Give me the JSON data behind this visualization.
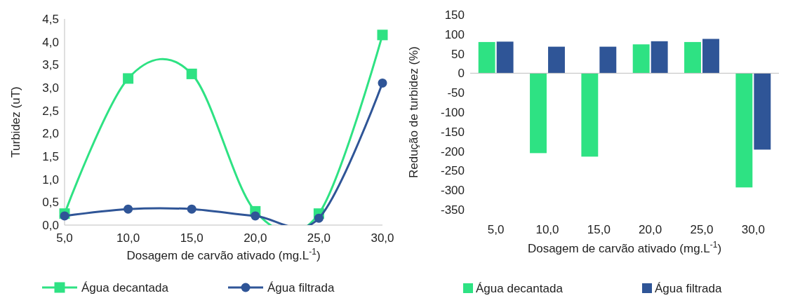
{
  "chart_data": [
    {
      "type": "line",
      "xlabel": "Dosagem de carvão ativado (mg.L$^{-1}$)",
      "ylabel": "Turbidez (uT)",
      "x": [
        5,
        10,
        15,
        20,
        25,
        30
      ],
      "xlim": [
        5,
        30
      ],
      "xticks": [
        {
          "value": 5,
          "label": "5,0"
        },
        {
          "value": 10,
          "label": "10,0"
        },
        {
          "value": 15,
          "label": "15,0"
        },
        {
          "value": 20,
          "label": "20,0"
        },
        {
          "value": 25,
          "label": "25,0"
        },
        {
          "value": 30,
          "label": "30,0"
        }
      ],
      "ylim": [
        0,
        4.5
      ],
      "yticks": [
        {
          "value": 0,
          "label": "0,0"
        },
        {
          "value": 0.5,
          "label": "0,5"
        },
        {
          "value": 1,
          "label": "1,0"
        },
        {
          "value": 1.5,
          "label": "1,5"
        },
        {
          "value": 2,
          "label": "2,0"
        },
        {
          "value": 2.5,
          "label": "2,5"
        },
        {
          "value": 3,
          "label": "3,0"
        },
        {
          "value": 3.5,
          "label": "3,5"
        },
        {
          "value": 4,
          "label": "4,0"
        },
        {
          "value": 4.5,
          "label": "4,5"
        }
      ],
      "grid": false,
      "legend": "bottom",
      "line_style": "solid",
      "series": [
        {
          "name": "Água decantada",
          "color": "#2ee283",
          "marker": "square",
          "values": [
            0.25,
            3.2,
            3.3,
            0.3,
            0.25,
            4.15
          ]
        },
        {
          "name": "Água filtrada",
          "color": "#2f5597",
          "marker": "circle",
          "values": [
            0.2,
            0.35,
            0.35,
            0.2,
            0.15,
            3.1
          ]
        }
      ]
    },
    {
      "type": "bar",
      "xlabel": "Dosagem de carvão ativado (mg.L$^{-1}$)",
      "ylabel": "Redução de turbidez (%)",
      "categories": [
        "5,0",
        "10,0",
        "15,0",
        "20,0",
        "25,0",
        "30,0"
      ],
      "ylim": [
        -350,
        150
      ],
      "yticks": [
        -350,
        -300,
        -250,
        -200,
        -150,
        -100,
        -50,
        0,
        50,
        100,
        150
      ],
      "legend": "bottom",
      "series": [
        {
          "name": "Água decantada",
          "color": "#2ee283",
          "values": [
            80,
            -205,
            -214,
            74,
            80,
            -293
          ]
        },
        {
          "name": "Água filtrada",
          "color": "#2f5597",
          "values": [
            81,
            68,
            68,
            82,
            88,
            -196
          ]
        }
      ]
    }
  ]
}
